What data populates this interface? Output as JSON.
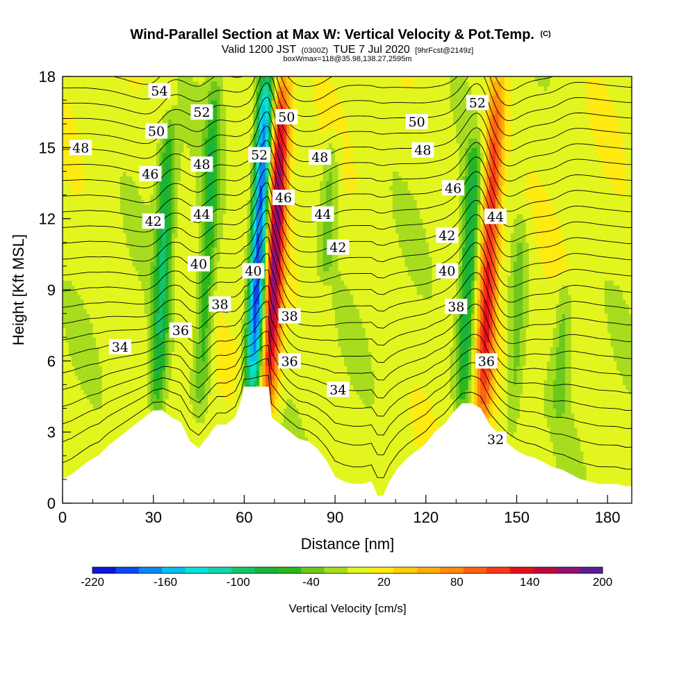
{
  "title": {
    "main": "Wind-Parallel Section at Max W: Vertical Velocity & Pot.Temp.",
    "copyright": "(C)",
    "valid_a": "Valid 1200 JST",
    "valid_utc": "(0300Z)",
    "valid_b": "TUE 7 Jul 2020",
    "forecast": "[9hrFcst@2149z]",
    "box": "boxWmax=118@35.98,138.27,2595m"
  },
  "chart_data": {
    "type": "heatmap",
    "xlabel": "Distance [nm]",
    "ylabel": "Height [Kft MSL]",
    "xlim": [
      0,
      188
    ],
    "ylim": [
      0,
      18
    ],
    "x_ticks": [
      0,
      30,
      60,
      90,
      120,
      150,
      180
    ],
    "y_ticks": [
      0,
      3,
      6,
      9,
      12,
      15,
      18
    ],
    "grid": false,
    "colorbar": {
      "label": "Vertical Velocity [cm/s]",
      "position": "bottom",
      "tick_labels": [
        -220,
        -160,
        -100,
        -40,
        20,
        80,
        140,
        200
      ],
      "levels": [
        -220,
        -200,
        -180,
        -160,
        -140,
        -120,
        -100,
        -80,
        -60,
        -40,
        -20,
        0,
        20,
        40,
        60,
        80,
        100,
        120,
        140,
        160,
        180,
        200
      ],
      "colors": [
        "#0a16e0",
        "#0d47ef",
        "#0b86f2",
        "#07bff0",
        "#06e2d8",
        "#12d6a5",
        "#14c46a",
        "#19b33b",
        "#2cb81b",
        "#6ec81b",
        "#a7dd1e",
        "#e3f51f",
        "#ffea12",
        "#ffcd0c",
        "#ffae0a",
        "#ff8a0b",
        "#ff6210",
        "#ff3616",
        "#e6101a",
        "#bc0a3e",
        "#911072",
        "#5c1b95"
      ]
    },
    "vertical_velocity_features": [
      {
        "kind": "background",
        "x_range": [
          0,
          188
        ],
        "value_cm_s": 10
      },
      {
        "kind": "updraft",
        "x_center": 62,
        "height_range": [
          5,
          18
        ],
        "max_cm_s": 50
      },
      {
        "kind": "updraft",
        "x_center": 70,
        "height_range": [
          4,
          18
        ],
        "max_cm_s": 200
      },
      {
        "kind": "downdraft",
        "x_center": 65,
        "height_range": [
          4.5,
          18
        ],
        "min_cm_s": -220
      },
      {
        "kind": "downdraft",
        "x_center": 33,
        "height_range": [
          3.5,
          16
        ],
        "min_cm_s": -80
      },
      {
        "kind": "downdraft",
        "x_center": 48,
        "height_range": [
          4,
          18
        ],
        "min_cm_s": -60
      },
      {
        "kind": "updraft",
        "x_center": 141,
        "height_range": [
          3,
          18
        ],
        "max_cm_s": 140
      },
      {
        "kind": "downdraft",
        "x_center": 134,
        "height_range": [
          4,
          15
        ],
        "min_cm_s": -80
      },
      {
        "kind": "downdraft",
        "x_center": 165,
        "height_range": [
          4,
          9
        ],
        "min_cm_s": -30
      },
      {
        "kind": "downdraft",
        "x_center": 150,
        "height_range": [
          3,
          12
        ],
        "min_cm_s": -30
      },
      {
        "kind": "downdraft",
        "x_center": 88,
        "height_range": [
          10,
          15
        ],
        "min_cm_s": -30
      }
    ],
    "terrain_profile_kft": {
      "x": [
        0,
        3,
        6,
        9,
        12,
        15,
        18,
        21,
        24,
        27,
        30,
        33,
        36,
        39,
        42,
        45,
        48,
        51,
        54,
        57,
        59,
        60,
        62,
        65,
        68,
        69,
        72,
        75,
        78,
        81,
        84,
        87,
        90,
        93,
        96,
        99,
        102,
        104,
        105,
        106,
        108,
        111,
        114,
        117,
        120,
        123,
        126,
        129,
        132,
        135,
        138,
        141,
        144,
        147,
        150,
        153,
        156,
        159,
        162,
        165,
        168,
        171,
        174,
        177,
        180,
        183,
        186,
        188
      ],
      "height": [
        1.0,
        1.2,
        1.5,
        1.8,
        2.0,
        2.4,
        2.7,
        3.0,
        3.3,
        3.6,
        3.9,
        3.9,
        3.6,
        3.4,
        2.6,
        2.3,
        2.8,
        3.3,
        3.3,
        3.6,
        4.3,
        4.9,
        4.9,
        4.9,
        4.9,
        3.6,
        3.3,
        3.0,
        2.7,
        2.6,
        2.3,
        1.8,
        1.1,
        0.9,
        0.8,
        0.8,
        0.9,
        0.3,
        0.3,
        0.3,
        0.9,
        1.5,
        1.9,
        2.2,
        2.5,
        3.0,
        3.3,
        3.8,
        4.2,
        4.2,
        4.0,
        3.3,
        2.9,
        2.5,
        2.2,
        2.0,
        1.9,
        1.7,
        1.5,
        1.4,
        1.2,
        1.0,
        0.9,
        0.8,
        0.8,
        0.8,
        0.7,
        0.7
      ]
    },
    "potential_temperature": {
      "contour_interval": 1,
      "levels_range": [
        31,
        57
      ],
      "labels": [
        {
          "value": "54",
          "x": 32,
          "h": 17.4
        },
        {
          "value": "50",
          "x": 31,
          "h": 15.7
        },
        {
          "value": "48",
          "x": 6,
          "h": 15.0
        },
        {
          "value": "46",
          "x": 29,
          "h": 13.9
        },
        {
          "value": "42",
          "x": 30,
          "h": 11.9
        },
        {
          "value": "34",
          "x": 19,
          "h": 6.6
        },
        {
          "value": "52",
          "x": 46,
          "h": 16.5
        },
        {
          "value": "48",
          "x": 46,
          "h": 14.3
        },
        {
          "value": "44",
          "x": 46,
          "h": 12.2
        },
        {
          "value": "40",
          "x": 45,
          "h": 10.1
        },
        {
          "value": "38",
          "x": 52,
          "h": 8.4
        },
        {
          "value": "36",
          "x": 39,
          "h": 7.3
        },
        {
          "value": "52",
          "x": 65,
          "h": 14.7
        },
        {
          "value": "50",
          "x": 74,
          "h": 16.3
        },
        {
          "value": "46",
          "x": 73,
          "h": 12.9
        },
        {
          "value": "40",
          "x": 63,
          "h": 9.8
        },
        {
          "value": "38",
          "x": 75,
          "h": 7.9
        },
        {
          "value": "36",
          "x": 75,
          "h": 6.0
        },
        {
          "value": "48",
          "x": 85,
          "h": 14.6
        },
        {
          "value": "44",
          "x": 86,
          "h": 12.2
        },
        {
          "value": "42",
          "x": 91,
          "h": 10.8
        },
        {
          "value": "34",
          "x": 91,
          "h": 4.8
        },
        {
          "value": "50",
          "x": 117,
          "h": 16.1
        },
        {
          "value": "48",
          "x": 119,
          "h": 14.9
        },
        {
          "value": "46",
          "x": 129,
          "h": 13.3
        },
        {
          "value": "42",
          "x": 127,
          "h": 11.3
        },
        {
          "value": "40",
          "x": 127,
          "h": 9.8
        },
        {
          "value": "38",
          "x": 130,
          "h": 8.3
        },
        {
          "value": "36",
          "x": 140,
          "h": 6.0
        },
        {
          "value": "52",
          "x": 137,
          "h": 16.9
        },
        {
          "value": "44",
          "x": 143,
          "h": 12.1
        },
        {
          "value": "32",
          "x": 143,
          "h": 2.7
        }
      ]
    }
  }
}
